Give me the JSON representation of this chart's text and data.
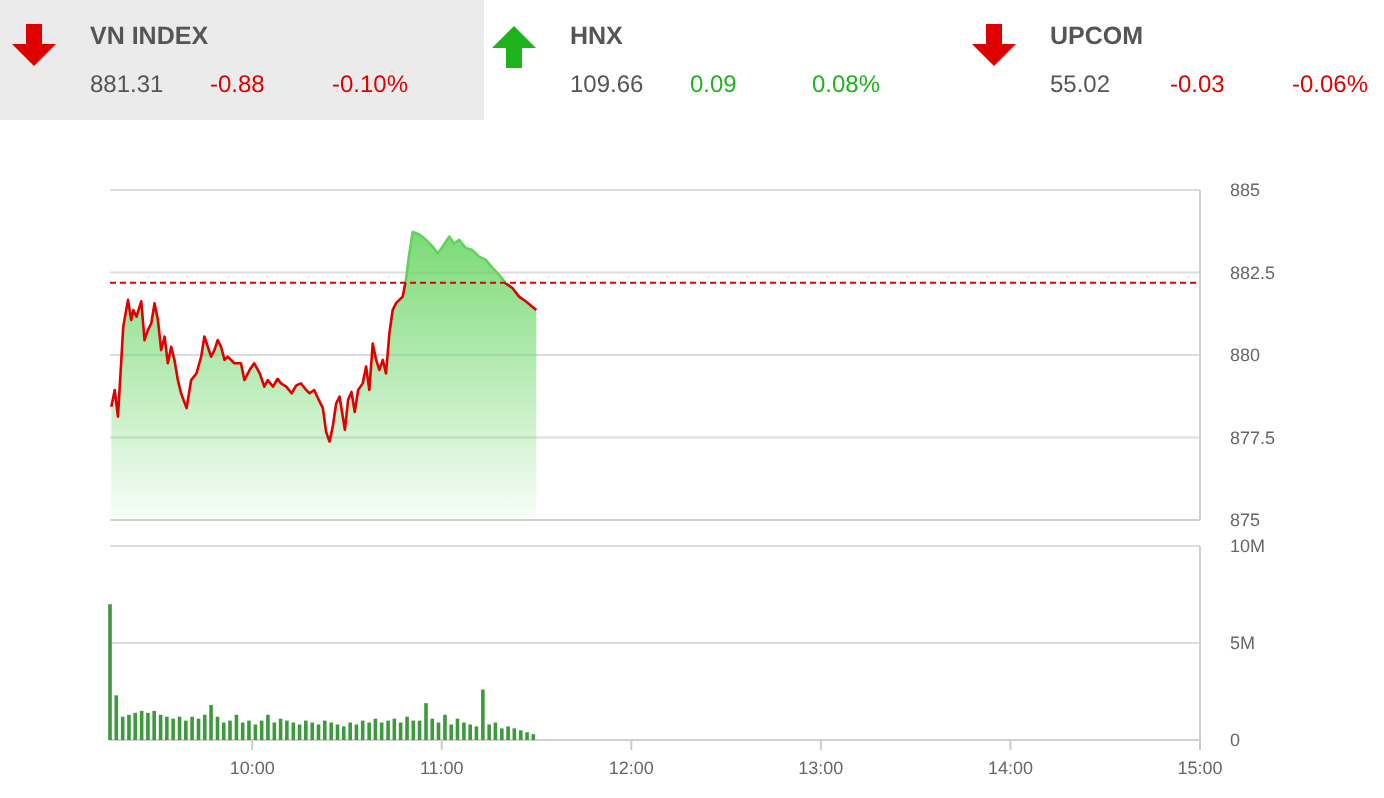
{
  "chart_data": [
    {
      "type": "other",
      "annotations": [
        "VN INDEX",
        "881.31",
        "-0.88",
        "-0.10%",
        "HNX",
        "109.66",
        "0.09",
        "0.08%",
        "UPCOM",
        "55.02",
        "-0.03",
        "-0.06%"
      ]
    },
    {
      "type": "area",
      "xlim": [
        9.25,
        15
      ],
      "ylim": [
        875,
        885
      ],
      "yticks": [
        875,
        877.5,
        880,
        882.5,
        885
      ],
      "tick_labels": "y",
      "grid": "y",
      "ref_lines": [
        {
          "axis": "y",
          "value": 882.19,
          "color": "#e00000",
          "line_style": "dashed"
        }
      ],
      "series": [
        {
          "color": "#5fd35a",
          "x": [
            9.257,
            9.275,
            9.292,
            9.32,
            9.345,
            9.362,
            9.373,
            9.39,
            9.415,
            9.432,
            9.45,
            9.468,
            9.485,
            9.503,
            9.52,
            9.538,
            9.555,
            9.573,
            9.59,
            9.608,
            9.625,
            9.654,
            9.678,
            9.706,
            9.731,
            9.748,
            9.766,
            9.783,
            9.801,
            9.818,
            9.836,
            9.854,
            9.871,
            9.906,
            9.941,
            9.959,
            9.987,
            10.011,
            10.04,
            10.064,
            10.082,
            10.11,
            10.134,
            10.152,
            10.18,
            10.208,
            10.233,
            10.257,
            10.285,
            10.303,
            10.327,
            10.348,
            10.373,
            10.39,
            10.408,
            10.425,
            10.443,
            10.461,
            10.478,
            10.489,
            10.506,
            10.524,
            10.541,
            10.559,
            10.583,
            10.601,
            10.618,
            10.636,
            10.654,
            10.671,
            10.689,
            10.706,
            10.724,
            10.741,
            10.759,
            10.794,
            10.811,
            10.829,
            10.847,
            10.882,
            10.917,
            10.952,
            10.98,
            11.004,
            11.022,
            11.04,
            11.064,
            11.092,
            11.127,
            11.162,
            11.197,
            11.232,
            11.268,
            11.303,
            11.338,
            11.373,
            11.408,
            11.443,
            11.478,
            11.499
          ],
          "values": [
            878.43,
            878.94,
            878.13,
            880.86,
            881.67,
            881.06,
            881.36,
            881.16,
            881.63,
            880.45,
            880.76,
            880.96,
            881.57,
            881.06,
            880.15,
            880.56,
            879.75,
            880.25,
            879.85,
            879.24,
            878.84,
            878.39,
            879.24,
            879.44,
            879.95,
            880.56,
            880.25,
            879.95,
            880.15,
            880.45,
            880.25,
            879.85,
            879.95,
            879.75,
            879.75,
            879.24,
            879.55,
            879.75,
            879.44,
            879.04,
            879.24,
            879.04,
            879.28,
            879.14,
            879.04,
            878.84,
            879.08,
            879.14,
            878.94,
            878.84,
            878.94,
            878.68,
            878.39,
            877.67,
            877.38,
            877.83,
            878.53,
            878.74,
            878.13,
            877.73,
            878.64,
            878.88,
            878.27,
            878.94,
            879.14,
            879.65,
            878.94,
            880.35,
            879.85,
            879.55,
            879.85,
            879.44,
            880.66,
            881.36,
            881.57,
            881.77,
            882.27,
            883.08,
            883.73,
            883.65,
            883.49,
            883.28,
            883.08,
            883.28,
            883.44,
            883.59,
            883.38,
            883.49,
            883.24,
            883.18,
            882.98,
            882.88,
            882.64,
            882.43,
            882.17,
            882.03,
            881.77,
            881.63,
            881.46,
            881.36
          ]
        }
      ]
    },
    {
      "type": "bar",
      "xlim": [
        9.25,
        15
      ],
      "xticks": [
        {
          "value": 10,
          "label": "10:00"
        },
        {
          "value": 11,
          "label": "11:00"
        },
        {
          "value": 12,
          "label": "12:00"
        },
        {
          "value": 13,
          "label": "13:00"
        },
        {
          "value": 14,
          "label": "14:00"
        },
        {
          "value": 15,
          "label": "15:00"
        }
      ],
      "ylim": [
        0,
        10
      ],
      "yticks": [
        0,
        {
          "value": 5,
          "label": "5M"
        },
        {
          "value": 10,
          "label": "10M"
        }
      ],
      "grid": "y",
      "series": [
        {
          "color": "#3c9a3c",
          "x": [
            9.25,
            9.283,
            9.317,
            9.35,
            9.383,
            9.417,
            9.45,
            9.483,
            9.517,
            9.55,
            9.583,
            9.617,
            9.65,
            9.683,
            9.717,
            9.75,
            9.783,
            9.817,
            9.85,
            9.883,
            9.917,
            9.95,
            9.983,
            10.017,
            10.05,
            10.083,
            10.117,
            10.15,
            10.183,
            10.217,
            10.25,
            10.283,
            10.317,
            10.35,
            10.383,
            10.417,
            10.45,
            10.483,
            10.517,
            10.55,
            10.583,
            10.617,
            10.65,
            10.683,
            10.717,
            10.75,
            10.783,
            10.817,
            10.85,
            10.883,
            10.917,
            10.95,
            10.983,
            11.017,
            11.05,
            11.083,
            11.117,
            11.15,
            11.183,
            11.217,
            11.25,
            11.283,
            11.317,
            11.35,
            11.383,
            11.417,
            11.45,
            11.483
          ],
          "values": [
            7.0,
            2.3,
            1.2,
            1.3,
            1.4,
            1.5,
            1.4,
            1.5,
            1.3,
            1.2,
            1.1,
            1.2,
            1.0,
            1.2,
            1.1,
            1.3,
            1.8,
            1.2,
            0.9,
            1.0,
            1.3,
            0.9,
            1.0,
            0.8,
            1.0,
            1.3,
            0.9,
            1.1,
            1.0,
            0.9,
            0.8,
            1.0,
            0.9,
            0.8,
            1.0,
            0.9,
            0.8,
            0.7,
            0.9,
            0.8,
            1.0,
            0.9,
            1.1,
            0.9,
            1.0,
            1.1,
            0.9,
            1.2,
            1.0,
            1.0,
            1.9,
            1.1,
            0.9,
            1.3,
            0.8,
            1.1,
            0.9,
            0.8,
            0.7,
            2.6,
            0.8,
            0.9,
            0.6,
            0.7,
            0.6,
            0.5,
            0.4,
            0.3
          ]
        }
      ]
    }
  ]
}
